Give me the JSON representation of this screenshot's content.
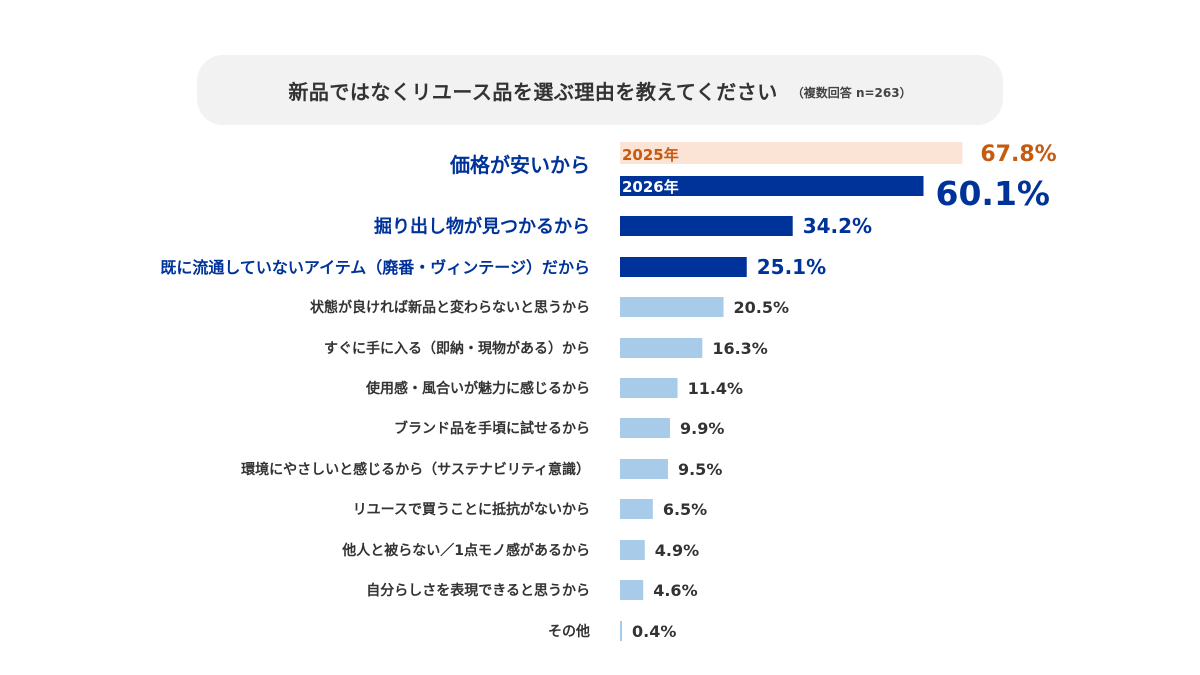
{
  "header": {
    "title": "新品ではなくリユース品を選ぶ理由を教えてください",
    "note": "（複数回答 n=263）"
  },
  "colors": {
    "y2025_bar": "#fbe3d6",
    "y2025_label": "#c55a11",
    "y2026_bar": "#003399",
    "y2026_label": "#003399",
    "other_bar": "#a9cbea",
    "highlight_label": "#003399",
    "normal_label": "#333333"
  },
  "chart_data": {
    "type": "bar",
    "orientation": "horizontal",
    "title": "新品ではなくリユース品を選ぶ理由を教えてください",
    "note": "（複数回答 n=263）",
    "categories": [
      "価格が安いから",
      "掘り出し物が見つかるから",
      "既に流通していないアイテム（廃番・ヴィンテージ）だから",
      "状態が良ければ新品と変わらないと思うから",
      "すぐに手に入る（即納・現物がある）から",
      "使用感・風合いが魅力に感じるから",
      "ブランド品を手頃に試せるから",
      "環境にやさしいと感じるから（サステナビリティ意識）",
      "リユースで買うことに抵抗がないから",
      "他人と被らない／1点モノ感があるから",
      "自分らしさを表現できると思うから",
      "その他"
    ],
    "values": [
      60.1,
      34.2,
      25.1,
      20.5,
      16.3,
      11.4,
      9.9,
      9.5,
      6.5,
      4.9,
      4.6,
      0.4
    ],
    "value_labels": [
      "60.1%",
      "34.2%",
      "25.1%",
      "20.5%",
      "16.3%",
      "11.4%",
      "9.9%",
      "9.5%",
      "6.5%",
      "4.9%",
      "4.6%",
      "0.4%"
    ],
    "highlighted": [
      true,
      true,
      true,
      false,
      false,
      false,
      false,
      false,
      false,
      false,
      false,
      false
    ],
    "comparison": {
      "category": "価格が安いから",
      "series": [
        {
          "name": "2025年",
          "value": 67.8,
          "label": "67.8%"
        },
        {
          "name": "2026年",
          "value": 60.1,
          "label": "60.1%"
        }
      ]
    },
    "xlim": [
      0,
      100
    ],
    "grid": false,
    "legend": "none"
  }
}
